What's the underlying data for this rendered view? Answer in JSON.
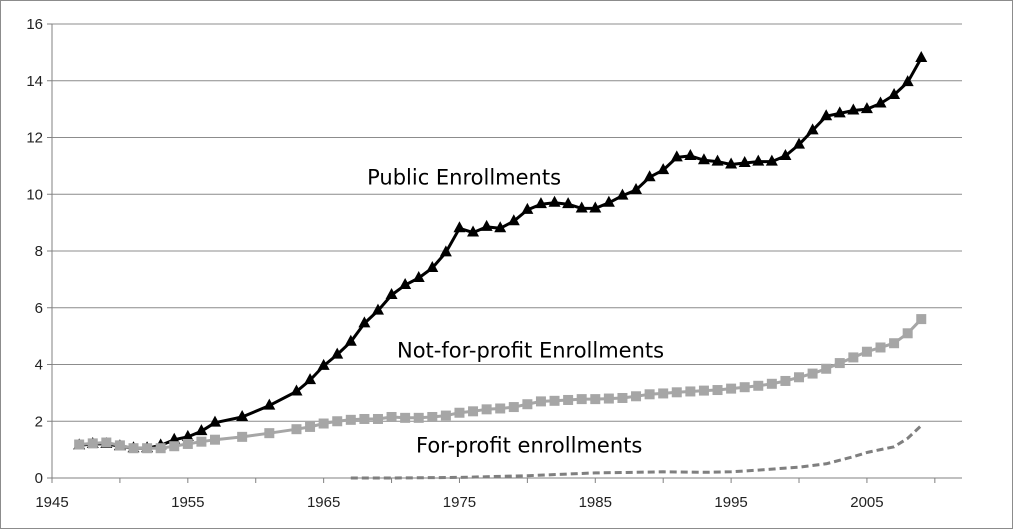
{
  "chart_data": {
    "type": "line",
    "title": "",
    "xlabel": "",
    "ylabel": "",
    "xlim": [
      1945,
      2012
    ],
    "ylim": [
      0,
      16
    ],
    "x_ticks": [
      "1945",
      "1955",
      "1965",
      "1975",
      "1985",
      "1995",
      "2005"
    ],
    "y_ticks": [
      "0",
      "2",
      "4",
      "6",
      "8",
      "10",
      "12",
      "14",
      "16"
    ],
    "grid": "horizontal",
    "legend": "none (inline series labels)",
    "series": [
      {
        "name": "Public Enrollments",
        "color": "#000000",
        "marker": "triangle",
        "line_style": "solid",
        "points": [
          [
            1947,
            1.15
          ],
          [
            1948,
            1.2
          ],
          [
            1949,
            1.2
          ],
          [
            1950,
            1.12
          ],
          [
            1951,
            1.05
          ],
          [
            1952,
            1.05
          ],
          [
            1953,
            1.15
          ],
          [
            1954,
            1.35
          ],
          [
            1955,
            1.45
          ],
          [
            1956,
            1.65
          ],
          [
            1957,
            1.95
          ],
          [
            1959,
            2.15
          ],
          [
            1961,
            2.55
          ],
          [
            1963,
            3.05
          ],
          [
            1964,
            3.45
          ],
          [
            1965,
            3.95
          ],
          [
            1966,
            4.35
          ],
          [
            1967,
            4.8
          ],
          [
            1968,
            5.45
          ],
          [
            1969,
            5.9
          ],
          [
            1970,
            6.45
          ],
          [
            1971,
            6.8
          ],
          [
            1972,
            7.05
          ],
          [
            1973,
            7.4
          ],
          [
            1974,
            7.95
          ],
          [
            1975,
            8.8
          ],
          [
            1976,
            8.65
          ],
          [
            1977,
            8.85
          ],
          [
            1978,
            8.8
          ],
          [
            1979,
            9.05
          ],
          [
            1980,
            9.45
          ],
          [
            1981,
            9.65
          ],
          [
            1982,
            9.7
          ],
          [
            1983,
            9.65
          ],
          [
            1984,
            9.5
          ],
          [
            1985,
            9.5
          ],
          [
            1986,
            9.7
          ],
          [
            1987,
            9.95
          ],
          [
            1988,
            10.15
          ],
          [
            1989,
            10.6
          ],
          [
            1990,
            10.85
          ],
          [
            1991,
            11.3
          ],
          [
            1992,
            11.35
          ],
          [
            1993,
            11.2
          ],
          [
            1994,
            11.15
          ],
          [
            1995,
            11.05
          ],
          [
            1996,
            11.1
          ],
          [
            1997,
            11.15
          ],
          [
            1998,
            11.15
          ],
          [
            1999,
            11.35
          ],
          [
            2000,
            11.75
          ],
          [
            2001,
            12.25
          ],
          [
            2002,
            12.75
          ],
          [
            2003,
            12.85
          ],
          [
            2004,
            12.95
          ],
          [
            2005,
            13.0
          ],
          [
            2006,
            13.2
          ],
          [
            2007,
            13.5
          ],
          [
            2008,
            13.95
          ],
          [
            2009,
            14.8
          ]
        ]
      },
      {
        "name": "Not-for-profit Enrollments",
        "color": "#a6a6a6",
        "marker": "square",
        "line_style": "solid",
        "points": [
          [
            1947,
            1.18
          ],
          [
            1948,
            1.22
          ],
          [
            1949,
            1.25
          ],
          [
            1950,
            1.15
          ],
          [
            1951,
            1.05
          ],
          [
            1952,
            1.05
          ],
          [
            1953,
            1.05
          ],
          [
            1954,
            1.12
          ],
          [
            1955,
            1.2
          ],
          [
            1956,
            1.28
          ],
          [
            1957,
            1.35
          ],
          [
            1959,
            1.45
          ],
          [
            1961,
            1.58
          ],
          [
            1963,
            1.72
          ],
          [
            1964,
            1.8
          ],
          [
            1965,
            1.92
          ],
          [
            1966,
            2.0
          ],
          [
            1967,
            2.05
          ],
          [
            1968,
            2.08
          ],
          [
            1969,
            2.08
          ],
          [
            1970,
            2.15
          ],
          [
            1971,
            2.12
          ],
          [
            1972,
            2.12
          ],
          [
            1973,
            2.15
          ],
          [
            1974,
            2.2
          ],
          [
            1975,
            2.3
          ],
          [
            1976,
            2.35
          ],
          [
            1977,
            2.42
          ],
          [
            1978,
            2.45
          ],
          [
            1979,
            2.5
          ],
          [
            1980,
            2.6
          ],
          [
            1981,
            2.7
          ],
          [
            1982,
            2.72
          ],
          [
            1983,
            2.75
          ],
          [
            1984,
            2.78
          ],
          [
            1985,
            2.78
          ],
          [
            1986,
            2.8
          ],
          [
            1987,
            2.82
          ],
          [
            1988,
            2.88
          ],
          [
            1989,
            2.95
          ],
          [
            1990,
            2.98
          ],
          [
            1991,
            3.02
          ],
          [
            1992,
            3.05
          ],
          [
            1993,
            3.08
          ],
          [
            1994,
            3.1
          ],
          [
            1995,
            3.15
          ],
          [
            1996,
            3.2
          ],
          [
            1997,
            3.25
          ],
          [
            1998,
            3.32
          ],
          [
            1999,
            3.42
          ],
          [
            2000,
            3.55
          ],
          [
            2001,
            3.68
          ],
          [
            2002,
            3.85
          ],
          [
            2003,
            4.05
          ],
          [
            2004,
            4.25
          ],
          [
            2005,
            4.45
          ],
          [
            2006,
            4.6
          ],
          [
            2007,
            4.75
          ],
          [
            2008,
            5.1
          ],
          [
            2009,
            5.6
          ]
        ]
      },
      {
        "name": "For-profit enrollments",
        "color": "#7f7f7f",
        "marker": "none",
        "line_style": "dashed",
        "points": [
          [
            1967,
            0.0
          ],
          [
            1970,
            0.0
          ],
          [
            1975,
            0.02
          ],
          [
            1980,
            0.08
          ],
          [
            1985,
            0.18
          ],
          [
            1988,
            0.2
          ],
          [
            1990,
            0.22
          ],
          [
            1993,
            0.2
          ],
          [
            1995,
            0.22
          ],
          [
            1997,
            0.28
          ],
          [
            1999,
            0.35
          ],
          [
            2000,
            0.38
          ],
          [
            2002,
            0.5
          ],
          [
            2004,
            0.75
          ],
          [
            2005,
            0.9
          ],
          [
            2006,
            1.0
          ],
          [
            2007,
            1.1
          ],
          [
            2008,
            1.4
          ],
          [
            2009,
            1.85
          ]
        ]
      }
    ],
    "annotations": [
      {
        "text": "Public Enrollments",
        "x": 1968.2,
        "y": 10.35
      },
      {
        "text": "Not-for-profit Enrollments",
        "x": 1970.4,
        "y": 4.25
      },
      {
        "text": "For-profit enrollments",
        "x": 1971.8,
        "y": 0.9
      }
    ]
  }
}
